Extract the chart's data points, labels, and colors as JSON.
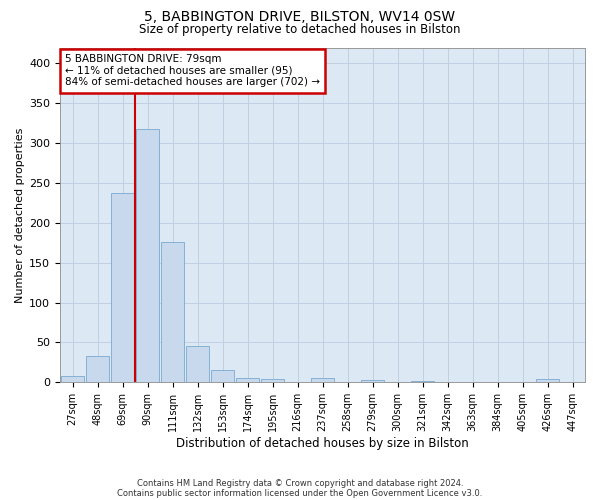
{
  "title1": "5, BABBINGTON DRIVE, BILSTON, WV14 0SW",
  "title2": "Size of property relative to detached houses in Bilston",
  "xlabel": "Distribution of detached houses by size in Bilston",
  "ylabel": "Number of detached properties",
  "footer1": "Contains HM Land Registry data © Crown copyright and database right 2024.",
  "footer2": "Contains public sector information licensed under the Open Government Licence v3.0.",
  "bin_labels": [
    "27sqm",
    "48sqm",
    "69sqm",
    "90sqm",
    "111sqm",
    "132sqm",
    "153sqm",
    "174sqm",
    "195sqm",
    "216sqm",
    "237sqm",
    "258sqm",
    "279sqm",
    "300sqm",
    "321sqm",
    "342sqm",
    "363sqm",
    "384sqm",
    "405sqm",
    "426sqm",
    "447sqm"
  ],
  "bar_values": [
    8,
    33,
    238,
    318,
    176,
    46,
    15,
    5,
    4,
    0,
    5,
    0,
    3,
    0,
    2,
    0,
    0,
    0,
    0,
    4,
    0
  ],
  "bar_color": "#c8d9ee",
  "bar_edge_color": "#7aaad0",
  "annotation_text": "5 BABBINGTON DRIVE: 79sqm\n← 11% of detached houses are smaller (95)\n84% of semi-detached houses are larger (702) →",
  "annotation_box_color": "white",
  "annotation_box_edge_color": "#cc0000",
  "red_line_color": "#cc0000",
  "red_line_x": 2.48,
  "ylim": [
    0,
    420
  ],
  "yticks": [
    0,
    50,
    100,
    150,
    200,
    250,
    300,
    350,
    400
  ],
  "grid_color": "#c0d0e0",
  "background_color": "#dce9f5"
}
